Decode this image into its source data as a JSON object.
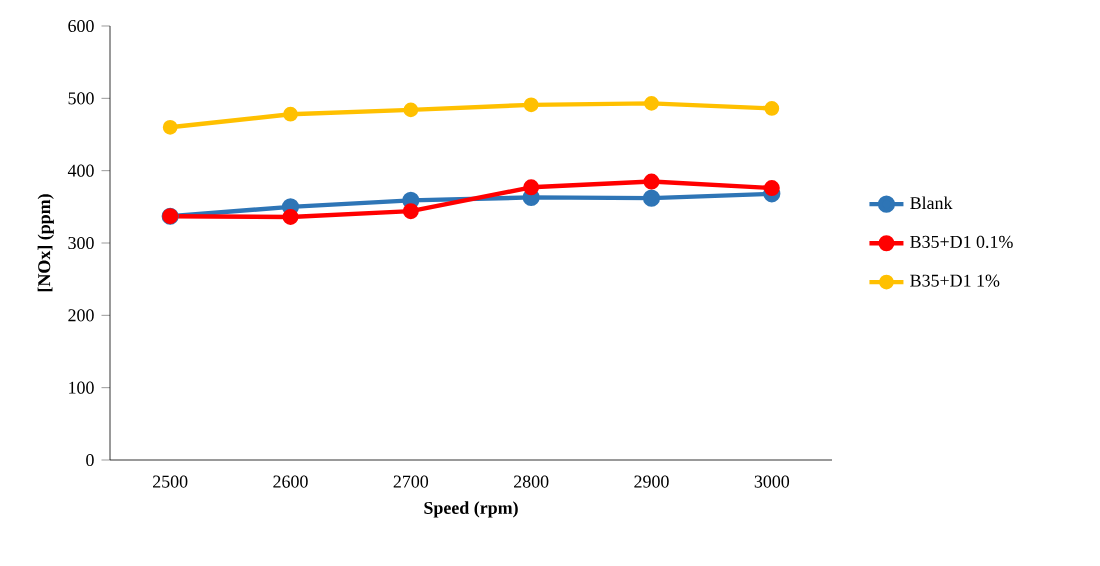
{
  "chart_data": {
    "type": "line",
    "xlabel": "Speed (rpm)",
    "ylabel": "[NOx] (ppm)",
    "categories": [
      "2500",
      "2600",
      "2700",
      "2800",
      "2900",
      "3000"
    ],
    "series": [
      {
        "name": "Blank",
        "color": "#2e75b6",
        "values": [
          337,
          350,
          359,
          363,
          362,
          368
        ]
      },
      {
        "name": "B35+D1 0.1%",
        "color": "#ff0000",
        "values": [
          337,
          336,
          344,
          377,
          385,
          376
        ]
      },
      {
        "name": "B35+D1 1%",
        "color": "#ffc000",
        "values": [
          460,
          478,
          484,
          491,
          493,
          486
        ]
      }
    ],
    "ylim": [
      0,
      600
    ],
    "yticks": [
      0,
      100,
      200,
      300,
      400,
      500,
      600
    ],
    "grid": false,
    "legend": "right",
    "marker": "circle",
    "line_style": "solid"
  }
}
